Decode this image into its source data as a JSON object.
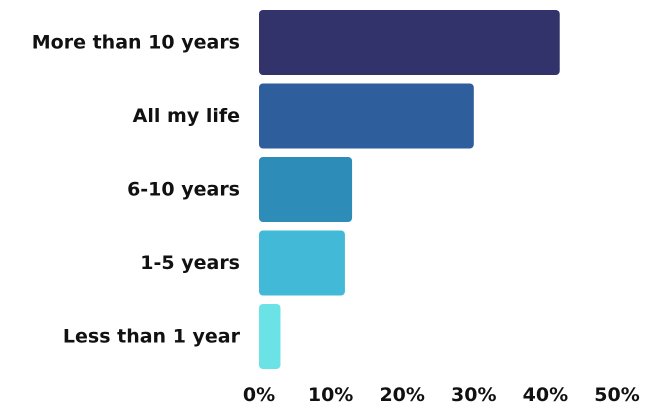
{
  "chart_data": {
    "type": "bar",
    "orientation": "horizontal",
    "categories": [
      "More than 10 years",
      "All my life",
      "6-10 years",
      "1-5 years",
      "Less than 1 year"
    ],
    "values": [
      42,
      30,
      13,
      12,
      3
    ],
    "colors": [
      "#33336b",
      "#2e5e9b",
      "#2e8cb9",
      "#42b9d6",
      "#6ae2e6"
    ],
    "xlim": [
      0,
      50
    ],
    "x_ticks": [
      "0%",
      "10%",
      "20%",
      "30%",
      "40%",
      "50%"
    ],
    "title": "",
    "xlabel": "",
    "ylabel": "",
    "grid": false,
    "legend": "none"
  }
}
